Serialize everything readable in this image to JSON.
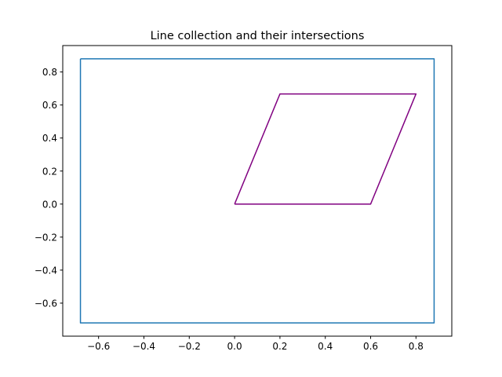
{
  "chart_data": {
    "type": "line",
    "title": "Line collection and their intersections",
    "xlabel": "",
    "ylabel": "",
    "xlim": [
      -0.758,
      0.958
    ],
    "ylim": [
      -0.8,
      0.96
    ],
    "grid": false,
    "x_ticks": [
      -0.6,
      -0.4,
      -0.2,
      0.0,
      0.2,
      0.4,
      0.6,
      0.8
    ],
    "x_tick_labels": [
      "−0.6",
      "−0.4",
      "−0.2",
      "0.0",
      "0.2",
      "0.4",
      "0.6",
      "0.8"
    ],
    "y_ticks": [
      -0.6,
      -0.4,
      -0.2,
      0.0,
      0.2,
      0.4,
      0.6,
      0.8
    ],
    "y_tick_labels": [
      "−0.6",
      "−0.4",
      "−0.2",
      "0.0",
      "0.2",
      "0.4",
      "0.6",
      "0.8"
    ],
    "series": [
      {
        "color": "#1f77b4",
        "x": [
          -0.68,
          0.88,
          0.88,
          -0.68,
          -0.68
        ],
        "y": [
          0.88,
          0.88,
          -0.72,
          -0.72,
          0.88
        ]
      },
      {
        "color": "#800080",
        "x": [
          0.0,
          0.6,
          0.8,
          0.2,
          0.0
        ],
        "y": [
          0.0,
          0.0,
          0.667,
          0.667,
          0.0
        ]
      }
    ]
  }
}
